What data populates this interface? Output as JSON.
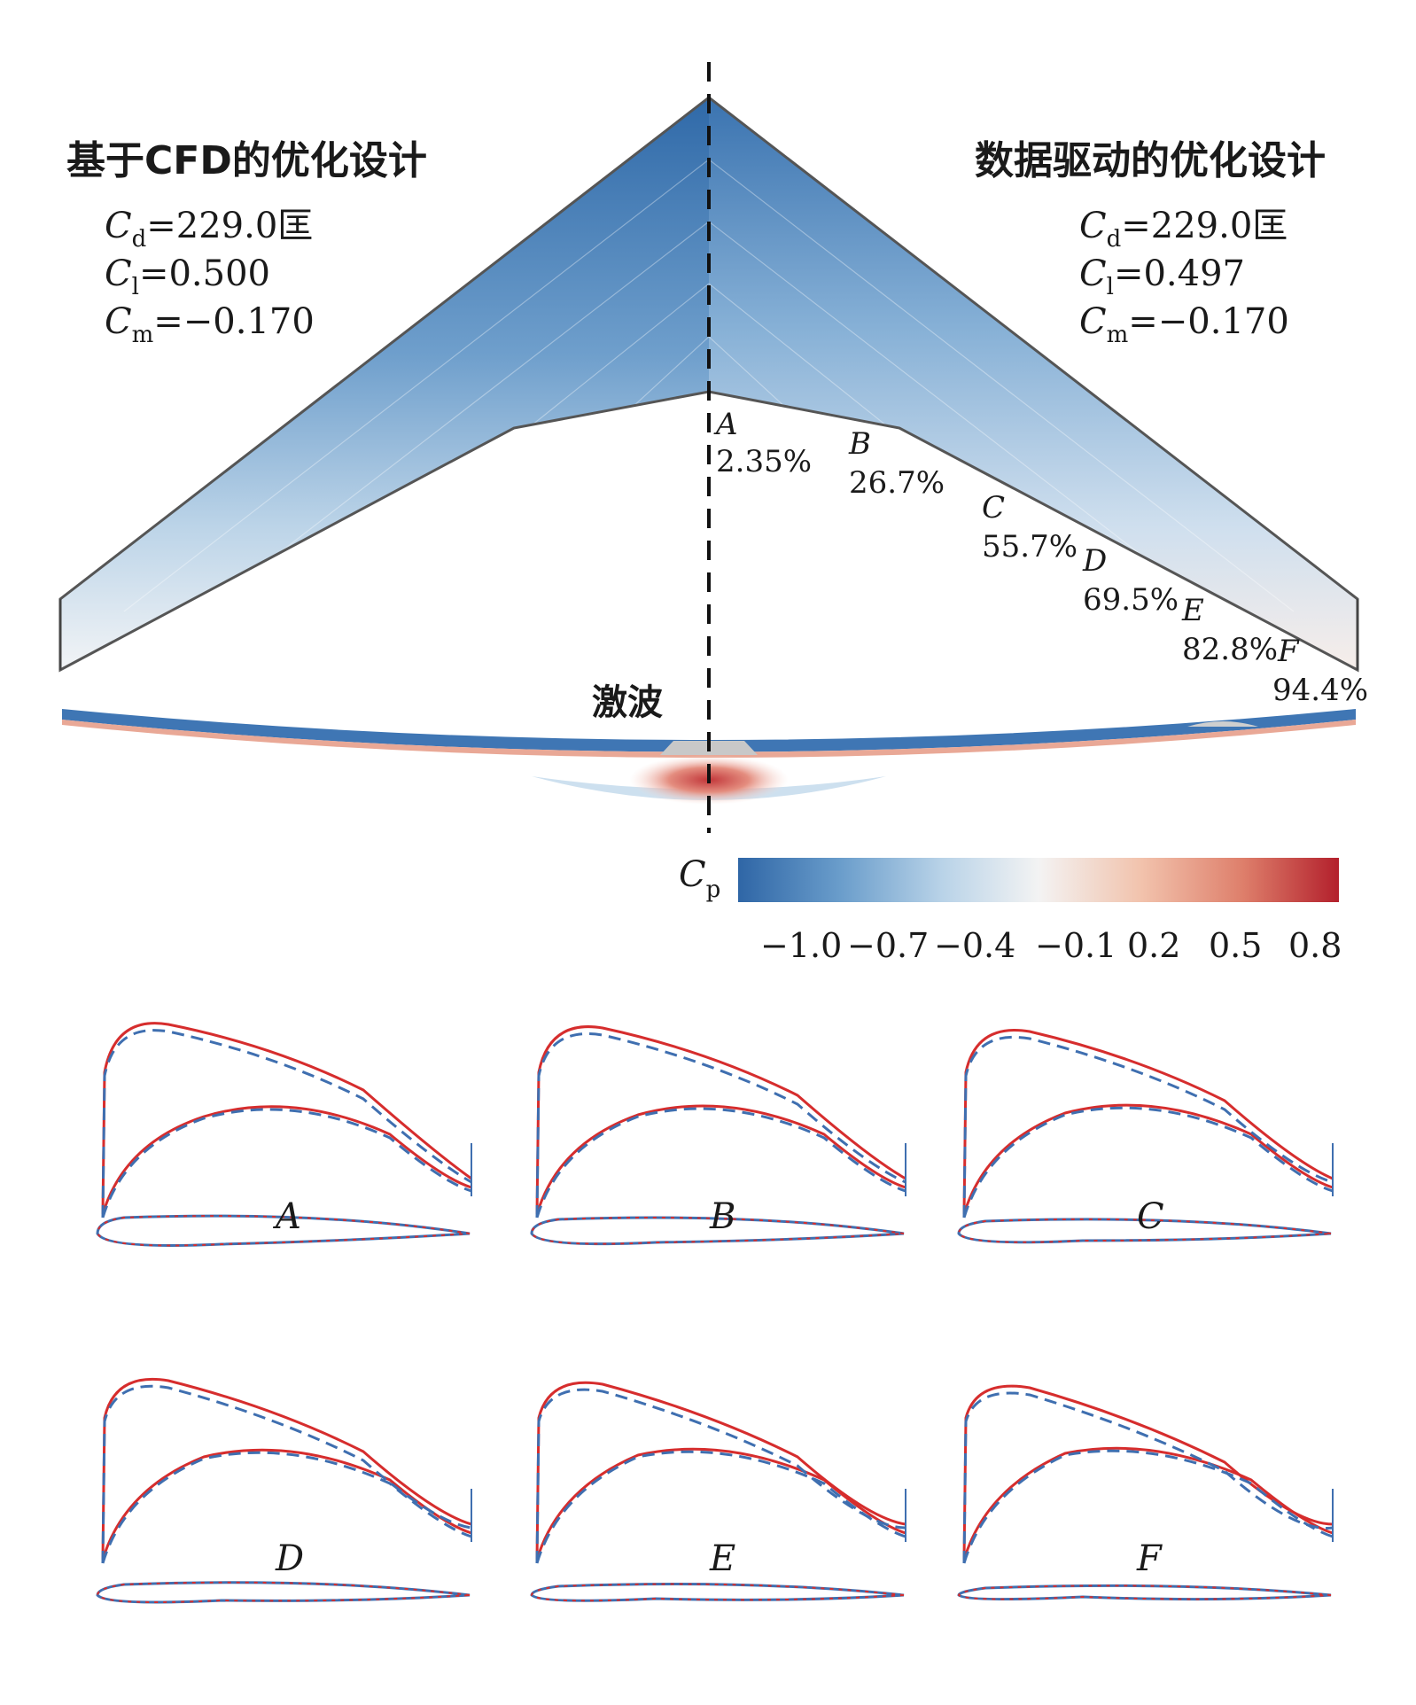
{
  "left_title": "基于CFD的优化设计",
  "right_title": "数据驱动的优化设计",
  "left_coeffs": {
    "cd_sym": "C",
    "cd_sub": "d",
    "cd_val": "=229.0匡",
    "cl_sym": "C",
    "cl_sub": "l",
    "cl_val": "=0.500",
    "cm_sym": "C",
    "cm_sub": "m",
    "cm_val": "=−0.170"
  },
  "right_coeffs": {
    "cd_sym": "C",
    "cd_sub": "d",
    "cd_val": "=229.0匡",
    "cl_sym": "C",
    "cl_sub": "l",
    "cl_val": "=0.497",
    "cm_sym": "C",
    "cm_sub": "m",
    "cm_val": "=−0.170"
  },
  "sections": [
    {
      "letter": "A",
      "pct": "2.35%"
    },
    {
      "letter": "B",
      "pct": "26.7%"
    },
    {
      "letter": "C",
      "pct": "55.7%"
    },
    {
      "letter": "D",
      "pct": "69.5%"
    },
    {
      "letter": "E",
      "pct": "82.8%"
    },
    {
      "letter": "F",
      "pct": "94.4%"
    }
  ],
  "shock_label": "激波",
  "colorbar": {
    "label": "C",
    "label_sub": "p",
    "ticks": [
      "−1.0",
      "−0.7",
      "−0.4",
      "−0.1",
      "0.2",
      "0.5",
      "0.8"
    ],
    "colors": [
      "#2f66a6",
      "#6a9dcb",
      "#b9d3e8",
      "#f3f3f3",
      "#f2c3ad",
      "#de7f6b",
      "#b3202c"
    ]
  },
  "panels": [
    {
      "label": "A"
    },
    {
      "label": "B"
    },
    {
      "label": "C"
    },
    {
      "label": "D"
    },
    {
      "label": "E"
    },
    {
      "label": "F"
    }
  ],
  "line_colors": {
    "cfd_solid": "#d62d2d",
    "data_dashed": "#3f6fb0"
  }
}
